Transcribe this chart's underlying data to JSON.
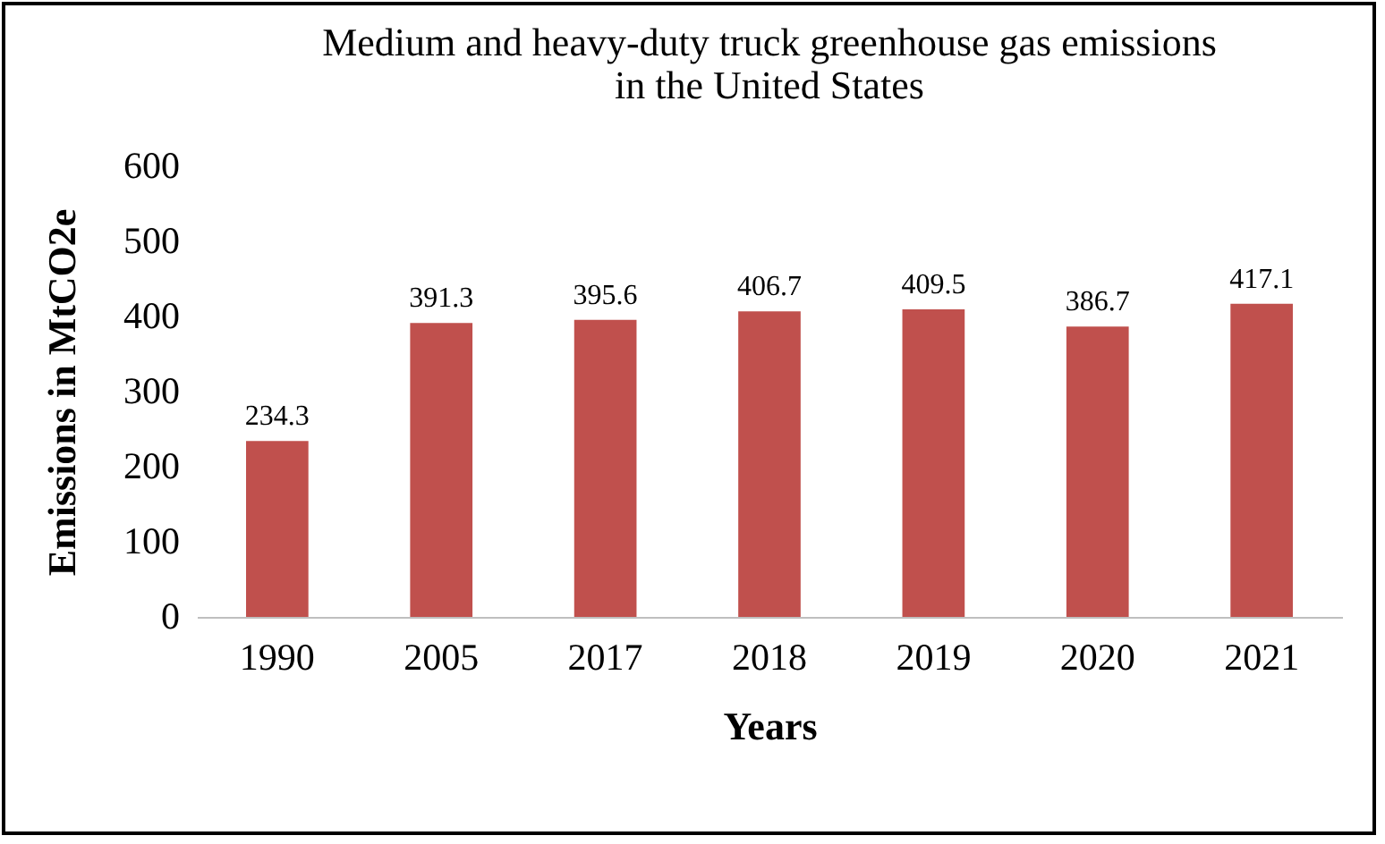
{
  "chart_data": {
    "type": "bar",
    "title": "Medium and heavy-duty truck greenhouse gas emissions\nin the United States",
    "xlabel": "Years",
    "ylabel": "Emissions in MtCO2e",
    "categories": [
      "1990",
      "2005",
      "2017",
      "2018",
      "2019",
      "2020",
      "2021"
    ],
    "values": [
      234.3,
      391.3,
      395.6,
      406.7,
      409.5,
      386.7,
      417.1
    ],
    "color": "#c0504d",
    "ylim": [
      0,
      600
    ],
    "yticks": [
      0,
      100,
      200,
      300,
      400,
      500,
      600
    ],
    "grid": false,
    "data_labels": true
  }
}
